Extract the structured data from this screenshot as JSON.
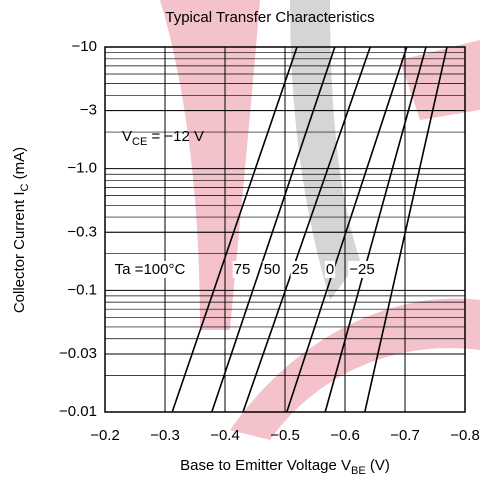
{
  "chart_data": {
    "type": "line",
    "title": "Typical Transfer Characteristics",
    "x_label": {
      "text": "Base to Emitter Voltage  V",
      "sub": "BE",
      "unit": "  (V)"
    },
    "y_label": {
      "text": "Collector Current  I",
      "sub": "C",
      "unit": "  (mA)"
    },
    "condition": {
      "text": "V",
      "sub": "CE",
      "rest": " = −12 V"
    },
    "log_y": true,
    "grid": true,
    "color": "#000000",
    "xlim": [
      -0.2,
      -0.8
    ],
    "xticks": [
      {
        "value": -0.2,
        "label": "−0.2"
      },
      {
        "value": -0.3,
        "label": "−0.3"
      },
      {
        "value": -0.4,
        "label": "−0.4"
      },
      {
        "value": -0.5,
        "label": "−0.5"
      },
      {
        "value": -0.6,
        "label": "−0.6"
      },
      {
        "value": -0.7,
        "label": "−0.7"
      },
      {
        "value": -0.8,
        "label": "−0.8"
      }
    ],
    "ylim": [
      -0.01,
      -10
    ],
    "yticks": [
      {
        "value": -0.01,
        "label": "−0.01"
      },
      {
        "value": -0.03,
        "label": "−0.03"
      },
      {
        "value": -0.1,
        "label": "−0.1"
      },
      {
        "value": -0.3,
        "label": "−0.3"
      },
      {
        "value": -1.0,
        "label": "−1.0"
      },
      {
        "value": -3,
        "label": "−3"
      },
      {
        "value": -10,
        "label": "−10"
      }
    ],
    "series": [
      {
        "name": "Ta =100°C",
        "x": [
          -0.312,
          -0.52
        ],
        "values": [
          -0.01,
          -10
        ]
      },
      {
        "name": "75",
        "x": [
          -0.378,
          -0.583
        ],
        "values": [
          -0.01,
          -10
        ]
      },
      {
        "name": "50",
        "x": [
          -0.43,
          -0.642
        ],
        "values": [
          -0.01,
          -10
        ]
      },
      {
        "name": "25",
        "x": [
          -0.503,
          -0.703
        ],
        "values": [
          -0.01,
          -10
        ]
      },
      {
        "name": "0",
        "x": [
          -0.567,
          -0.735
        ],
        "values": [
          -0.01,
          -10
        ]
      },
      {
        "name": "−25",
        "x": [
          -0.633,
          -0.77
        ],
        "values": [
          -0.01,
          -10
        ]
      }
    ]
  }
}
